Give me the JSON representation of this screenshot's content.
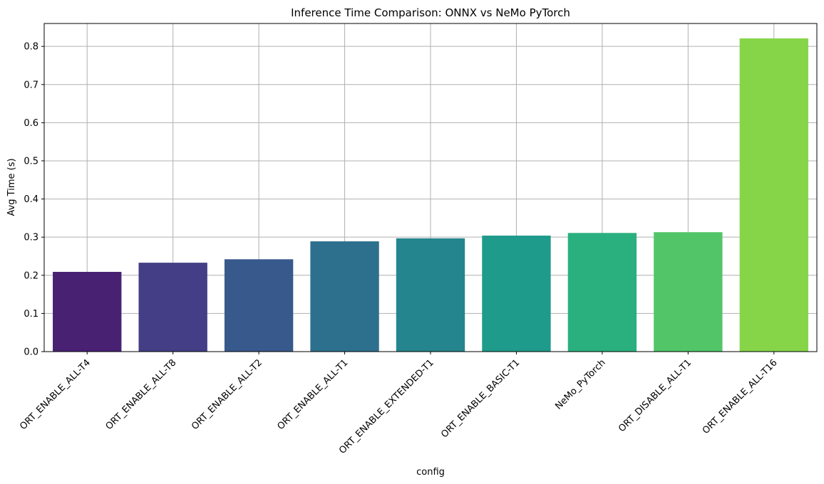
{
  "chart_data": {
    "type": "bar",
    "title": "Inference Time Comparison: ONNX vs NeMo PyTorch",
    "xlabel": "config",
    "ylabel": "Avg Time (s)",
    "categories": [
      "ORT_ENABLE_ALL-T4",
      "ORT_ENABLE_ALL-T8",
      "ORT_ENABLE_ALL-T2",
      "ORT_ENABLE_ALL-T1",
      "ORT_ENABLE_EXTENDED-T1",
      "ORT_ENABLE_BASIC-T1",
      "NeMo_PyTorch",
      "ORT_DISABLE_ALL-T1",
      "ORT_ENABLE_ALL-T16"
    ],
    "values": [
      0.209,
      0.233,
      0.242,
      0.289,
      0.297,
      0.304,
      0.311,
      0.313,
      0.821
    ],
    "colors": [
      "#482173",
      "#433e85",
      "#38598c",
      "#2d708e",
      "#25858e",
      "#1e9b8a",
      "#2ab07f",
      "#52c569",
      "#86d549"
    ],
    "ylim": [
      0,
      0.86
    ],
    "yticks": [
      0.0,
      0.1,
      0.2,
      0.3,
      0.4,
      0.5,
      0.6,
      0.7,
      0.8
    ],
    "ytick_labels": [
      "0.0",
      "0.1",
      "0.2",
      "0.3",
      "0.4",
      "0.5",
      "0.6",
      "0.7",
      "0.8"
    ],
    "grid": true,
    "legend": "none",
    "xtick_rotation": "45"
  }
}
